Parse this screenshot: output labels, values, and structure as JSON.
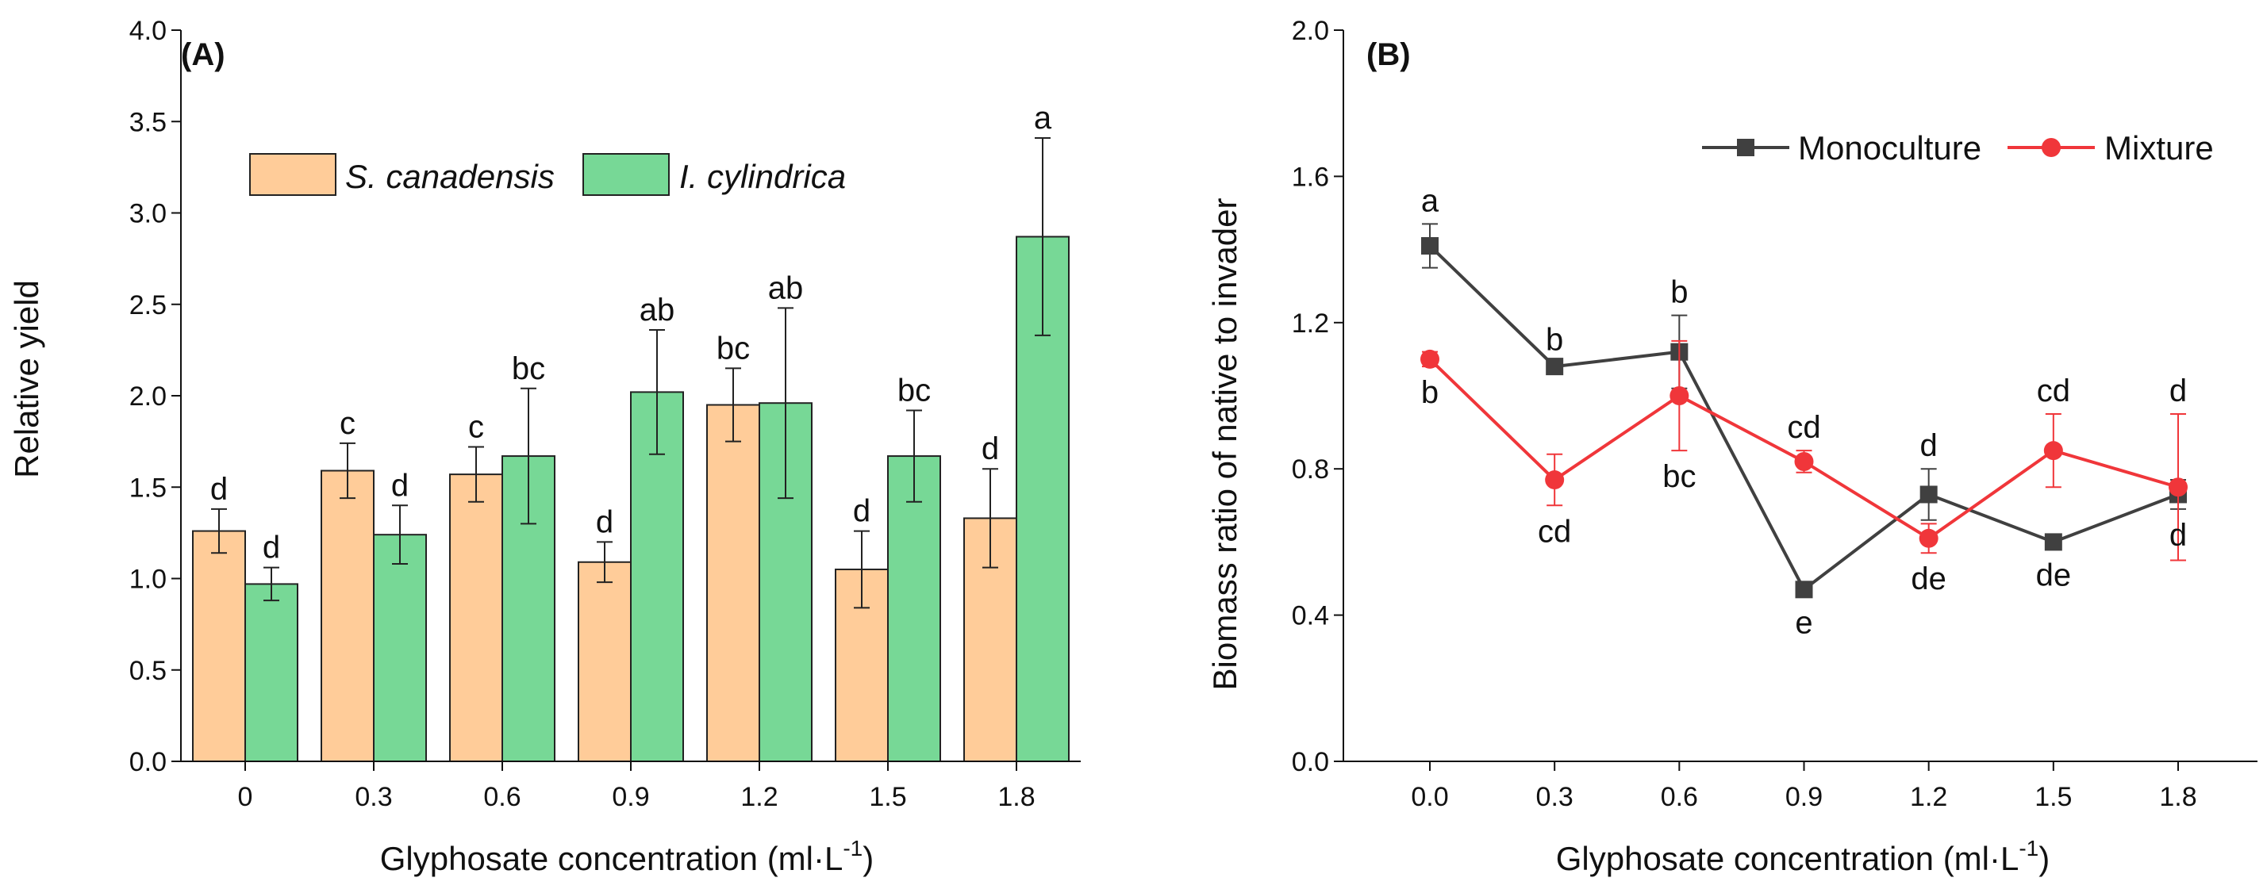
{
  "chart_data": [
    {
      "type": "bar",
      "panel_label": "(A)",
      "xlabel": "Glyphosate concentration (ml·L",
      "xlabel_sup": "-1",
      "xlabel_close": ")",
      "ylabel": "Relative yield",
      "ylim": [
        0,
        4.0
      ],
      "yticks": [
        "0.0",
        "0.5",
        "1.0",
        "1.5",
        "2.0",
        "2.5",
        "3.0",
        "3.5",
        "4.0"
      ],
      "categories": [
        "0",
        "0.3",
        "0.6",
        "0.9",
        "1.2",
        "1.5",
        "1.8"
      ],
      "legend_position": "top-left",
      "series": [
        {
          "name": "S. canadensis",
          "color": "#FFCC99",
          "values": [
            1.26,
            1.59,
            1.57,
            1.09,
            1.95,
            1.05,
            1.33
          ],
          "errors": [
            0.12,
            0.15,
            0.15,
            0.11,
            0.2,
            0.21,
            0.27
          ],
          "letters": [
            "d",
            "c",
            "c",
            "d",
            "bc",
            "d",
            "d"
          ]
        },
        {
          "name": "I. cylindrica",
          "color": "#77D896",
          "values": [
            0.97,
            1.24,
            1.67,
            2.02,
            1.96,
            1.67,
            2.87
          ],
          "errors": [
            0.09,
            0.16,
            0.37,
            0.34,
            0.52,
            0.25,
            0.54
          ],
          "letters": [
            "d",
            "d",
            "bc",
            "ab",
            "ab",
            "bc",
            "a"
          ]
        }
      ]
    },
    {
      "type": "line",
      "panel_label": "(B)",
      "xlabel": "Glyphosate concentration (ml·L",
      "xlabel_sup": "-1",
      "xlabel_close": ")",
      "ylabel": "Biomass ratio of native to invader",
      "ylim": [
        0,
        2.0
      ],
      "yticks": [
        "0.0",
        "0.4",
        "0.8",
        "1.2",
        "1.6",
        "2.0"
      ],
      "x": [
        0,
        0.3,
        0.6,
        0.9,
        1.2,
        1.5,
        1.8
      ],
      "categories": [
        "0.0",
        "0.3",
        "0.6",
        "0.9",
        "1.2",
        "1.5",
        "1.8"
      ],
      "legend_position": "top-right",
      "series": [
        {
          "name": "Monoculture",
          "color": "#404040",
          "marker": "square",
          "values": [
            1.41,
            1.08,
            1.12,
            0.47,
            0.73,
            0.6,
            0.73
          ],
          "errors": [
            0.06,
            0.01,
            0.1,
            0.02,
            0.07,
            0.02,
            0.04
          ],
          "letters": [
            "a",
            "b",
            "b",
            "e",
            "d",
            "de",
            "d"
          ],
          "letter_side": [
            "above",
            "above",
            "above",
            "below",
            "above",
            "below",
            "below"
          ]
        },
        {
          "name": "Mixture",
          "color": "#F0363A",
          "marker": "circle",
          "values": [
            1.1,
            0.77,
            1.0,
            0.82,
            0.61,
            0.85,
            0.75
          ],
          "errors": [
            0.02,
            0.07,
            0.15,
            0.03,
            0.04,
            0.1,
            0.2
          ],
          "letters": [
            "b",
            "cd",
            "bc",
            "cd",
            "de",
            "cd",
            "d"
          ],
          "letter_side": [
            "below",
            "below",
            "below",
            "above",
            "below",
            "above",
            "above"
          ]
        }
      ]
    }
  ]
}
